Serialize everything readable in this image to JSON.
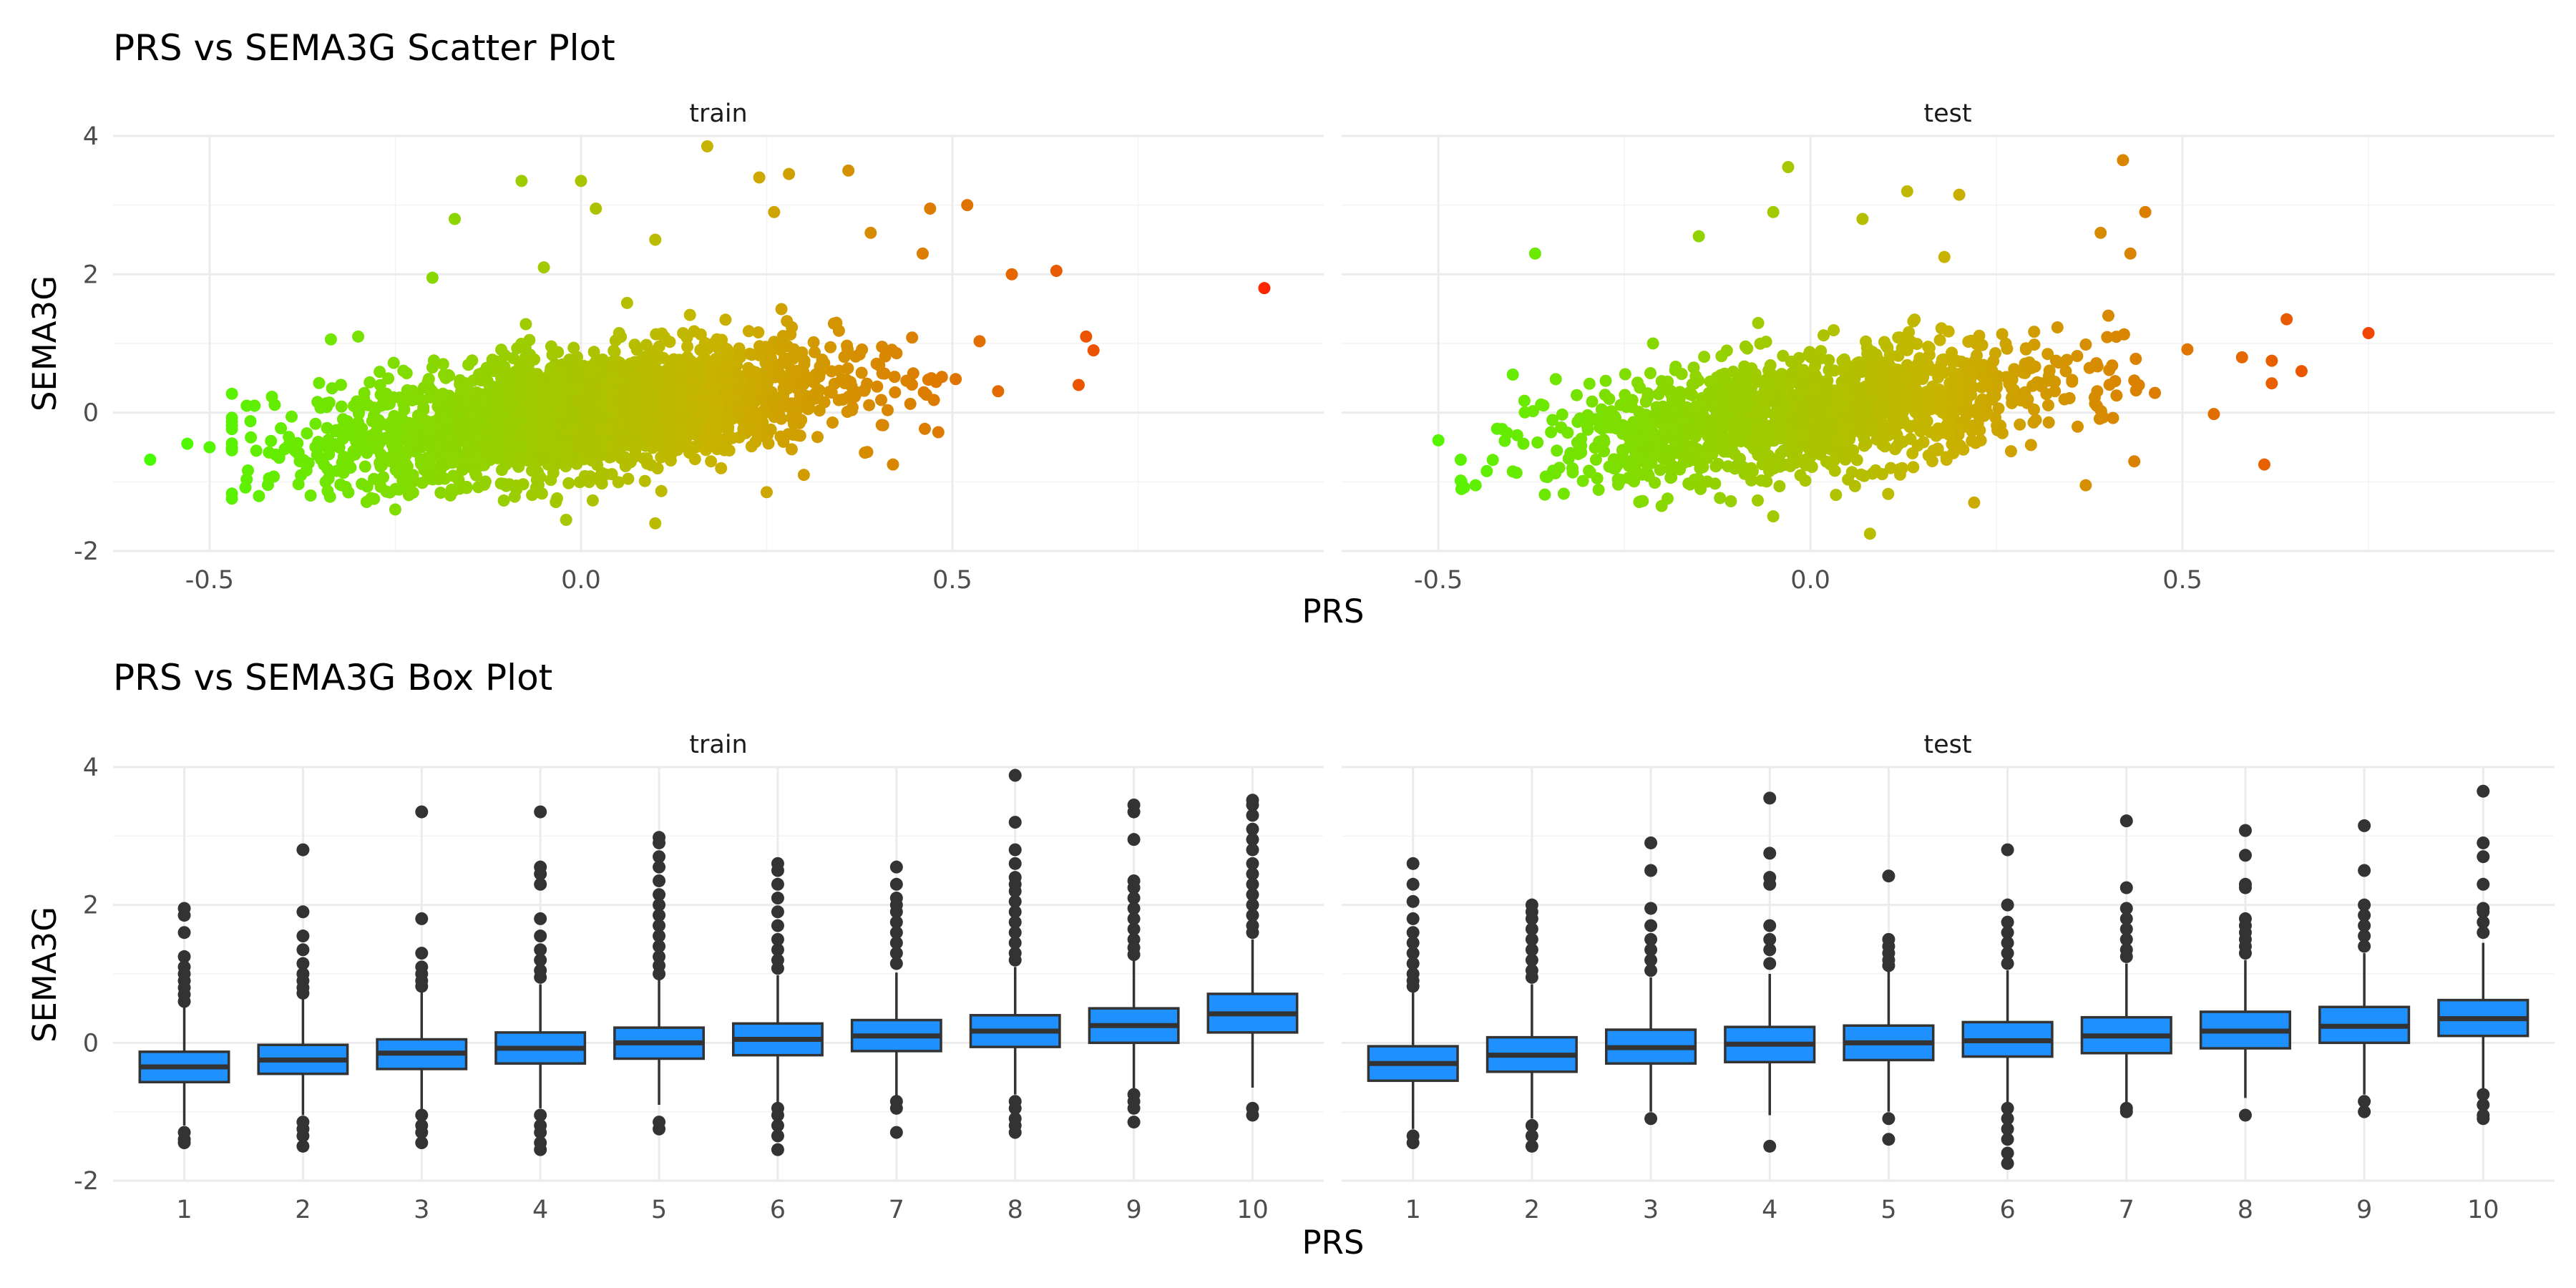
{
  "colors": {
    "low": "#44ff00",
    "mid": "#c8b400",
    "high": "#ff2000",
    "box_fill": "#1e90ff",
    "box_line": "#333333",
    "outlier": "#333333"
  },
  "chart_data": [
    {
      "type": "scatter",
      "title": "PRS vs SEMA3G Scatter Plot",
      "xlabel": "PRS",
      "ylabel": "SEMA3G",
      "xlim": [
        -0.63,
        1.0
      ],
      "ylim": [
        -2,
        4
      ],
      "x_ticks": [
        -0.5,
        0.0,
        0.5
      ],
      "x_tick_labels": [
        "-0.5",
        "0.0",
        "0.5"
      ],
      "y_ticks": [
        -2,
        0,
        2,
        4
      ],
      "y_tick_labels": [
        "-2",
        "0",
        "2",
        "4"
      ],
      "color_by": "PRS",
      "grid": true,
      "facets": [
        {
          "label": "train",
          "cloud": {
            "n": 2600,
            "prs_sd": 0.17,
            "slope": 1.3,
            "noise_sd": 0.42
          },
          "points": [
            [
              -0.58,
              -0.68
            ],
            [
              -0.53,
              -0.45
            ],
            [
              -0.5,
              -0.5
            ],
            [
              -0.45,
              0.1
            ],
            [
              -0.42,
              -0.95
            ],
            [
              -0.3,
              1.1
            ],
            [
              -0.2,
              1.95
            ],
            [
              -0.17,
              2.8
            ],
            [
              -0.08,
              3.35
            ],
            [
              -0.05,
              2.1
            ],
            [
              0.02,
              2.95
            ],
            [
              0.0,
              3.35
            ],
            [
              0.1,
              2.5
            ],
            [
              0.17,
              3.85
            ],
            [
              0.24,
              3.4
            ],
            [
              0.28,
              3.45
            ],
            [
              0.26,
              2.9
            ],
            [
              0.36,
              3.5
            ],
            [
              0.39,
              2.6
            ],
            [
              0.46,
              2.3
            ],
            [
              0.52,
              3.0
            ],
            [
              0.47,
              2.95
            ],
            [
              0.58,
              2.0
            ],
            [
              0.64,
              2.05
            ],
            [
              0.69,
              0.9
            ],
            [
              0.68,
              1.1
            ],
            [
              0.67,
              0.4
            ],
            [
              0.92,
              1.8
            ],
            [
              0.25,
              -1.15
            ],
            [
              0.1,
              -1.6
            ],
            [
              -0.02,
              -1.55
            ],
            [
              0.3,
              -0.9
            ],
            [
              0.42,
              -0.75
            ],
            [
              -0.25,
              -1.4
            ]
          ]
        },
        {
          "label": "test",
          "cloud": {
            "n": 1500,
            "prs_sd": 0.17,
            "slope": 1.3,
            "noise_sd": 0.42
          },
          "points": [
            [
              -0.5,
              -0.4
            ],
            [
              -0.45,
              -1.05
            ],
            [
              -0.4,
              -0.85
            ],
            [
              -0.37,
              2.3
            ],
            [
              -0.4,
              0.55
            ],
            [
              -0.15,
              2.55
            ],
            [
              -0.05,
              2.9
            ],
            [
              -0.03,
              3.55
            ],
            [
              0.07,
              2.8
            ],
            [
              0.13,
              3.2
            ],
            [
              0.2,
              3.15
            ],
            [
              0.18,
              2.25
            ],
            [
              0.39,
              2.6
            ],
            [
              0.42,
              3.65
            ],
            [
              0.45,
              2.9
            ],
            [
              0.43,
              2.3
            ],
            [
              0.58,
              0.8
            ],
            [
              0.62,
              0.75
            ],
            [
              0.66,
              0.6
            ],
            [
              0.64,
              1.35
            ],
            [
              0.75,
              1.15
            ],
            [
              0.61,
              -0.75
            ],
            [
              0.08,
              -1.75
            ],
            [
              -0.05,
              -1.5
            ],
            [
              0.22,
              -1.3
            ],
            [
              0.37,
              -1.05
            ],
            [
              -0.2,
              -1.35
            ]
          ]
        }
      ]
    },
    {
      "type": "box",
      "title": "PRS vs SEMA3G Box Plot",
      "xlabel": "PRS",
      "ylabel": "SEMA3G",
      "categories": [
        "1",
        "2",
        "3",
        "4",
        "5",
        "6",
        "7",
        "8",
        "9",
        "10"
      ],
      "ylim": [
        -2,
        4
      ],
      "y_ticks": [
        -2,
        0,
        2,
        4
      ],
      "y_tick_labels": [
        "-2",
        "0",
        "2",
        "4"
      ],
      "grid": true,
      "facets": [
        {
          "label": "train",
          "boxes": [
            {
              "q1": -0.57,
              "median": -0.35,
              "q3": -0.13,
              "lo": -1.2,
              "hi": 0.55,
              "outliers": [
                1.95,
                1.85,
                1.6,
                1.25,
                1.1,
                1.0,
                0.9,
                0.8,
                0.7,
                0.6,
                -1.3,
                -1.4,
                -1.45
              ]
            },
            {
              "q1": -0.45,
              "median": -0.25,
              "q3": -0.03,
              "lo": -1.05,
              "hi": 0.65,
              "outliers": [
                2.8,
                1.9,
                1.55,
                1.35,
                1.15,
                1.0,
                0.9,
                0.8,
                0.72,
                -1.15,
                -1.25,
                -1.35,
                -1.5
              ]
            },
            {
              "q1": -0.38,
              "median": -0.15,
              "q3": 0.05,
              "lo": -1.0,
              "hi": 0.75,
              "outliers": [
                3.35,
                1.8,
                1.3,
                1.1,
                1.0,
                0.9,
                0.82,
                -1.05,
                -1.2,
                -1.3,
                -1.45
              ]
            },
            {
              "q1": -0.3,
              "median": -0.08,
              "q3": 0.15,
              "lo": -0.95,
              "hi": 0.85,
              "outliers": [
                3.35,
                2.55,
                2.45,
                2.3,
                1.8,
                1.55,
                1.35,
                1.2,
                1.05,
                0.95,
                -1.05,
                -1.2,
                -1.3,
                -1.45,
                -1.55
              ]
            },
            {
              "q1": -0.23,
              "median": 0.0,
              "q3": 0.22,
              "lo": -0.9,
              "hi": 0.92,
              "outliers": [
                2.98,
                2.9,
                2.7,
                2.55,
                2.35,
                2.15,
                2.0,
                1.85,
                1.7,
                1.55,
                1.4,
                1.25,
                1.12,
                1.0,
                -1.15,
                -1.25
              ]
            },
            {
              "q1": -0.18,
              "median": 0.05,
              "q3": 0.28,
              "lo": -0.88,
              "hi": 0.98,
              "outliers": [
                2.6,
                2.5,
                2.3,
                2.1,
                1.9,
                1.7,
                1.5,
                1.35,
                1.2,
                1.08,
                -0.95,
                -1.05,
                -1.2,
                -1.35,
                -1.55
              ]
            },
            {
              "q1": -0.12,
              "median": 0.1,
              "q3": 0.33,
              "lo": -0.78,
              "hi": 1.02,
              "outliers": [
                2.55,
                2.3,
                2.1,
                2.0,
                1.9,
                1.75,
                1.6,
                1.45,
                1.3,
                1.15,
                -0.85,
                -0.95,
                -1.3
              ]
            },
            {
              "q1": -0.06,
              "median": 0.17,
              "q3": 0.4,
              "lo": -0.75,
              "hi": 1.1,
              "outliers": [
                3.88,
                3.2,
                2.8,
                2.6,
                2.4,
                2.3,
                2.2,
                2.05,
                1.9,
                1.75,
                1.6,
                1.45,
                1.3,
                1.2,
                -0.85,
                -0.95,
                -1.1,
                -1.2,
                -1.3
              ]
            },
            {
              "q1": 0.0,
              "median": 0.25,
              "q3": 0.5,
              "lo": -0.7,
              "hi": 1.2,
              "outliers": [
                3.45,
                3.35,
                2.95,
                2.35,
                2.25,
                2.1,
                1.95,
                1.8,
                1.65,
                1.5,
                1.38,
                1.28,
                -0.75,
                -0.85,
                -0.95,
                -1.15
              ]
            },
            {
              "q1": 0.15,
              "median": 0.42,
              "q3": 0.71,
              "lo": -0.65,
              "hi": 1.5,
              "outliers": [
                3.52,
                3.45,
                3.3,
                3.1,
                2.95,
                2.8,
                2.6,
                2.45,
                2.3,
                2.15,
                2.0,
                1.85,
                1.7,
                1.6,
                -0.95,
                -1.05
              ]
            }
          ]
        },
        {
          "label": "test",
          "boxes": [
            {
              "q1": -0.55,
              "median": -0.3,
              "q3": -0.05,
              "lo": -1.25,
              "hi": 0.75,
              "outliers": [
                2.6,
                2.3,
                2.05,
                1.8,
                1.6,
                1.45,
                1.3,
                1.15,
                1.0,
                0.9,
                0.82,
                -1.35,
                -1.45
              ]
            },
            {
              "q1": -0.42,
              "median": -0.18,
              "q3": 0.08,
              "lo": -1.1,
              "hi": 0.85,
              "outliers": [
                2.0,
                1.9,
                1.8,
                1.65,
                1.5,
                1.35,
                1.2,
                1.05,
                0.95,
                -1.2,
                -1.35,
                -1.5
              ]
            },
            {
              "q1": -0.3,
              "median": -0.07,
              "q3": 0.19,
              "lo": -1.0,
              "hi": 0.95,
              "outliers": [
                2.9,
                2.5,
                1.95,
                1.7,
                1.5,
                1.35,
                1.2,
                1.05,
                -1.1
              ]
            },
            {
              "q1": -0.28,
              "median": -0.02,
              "q3": 0.23,
              "lo": -1.05,
              "hi": 1.0,
              "outliers": [
                3.55,
                2.75,
                2.4,
                2.3,
                1.7,
                1.5,
                1.35,
                1.15,
                -1.5
              ]
            },
            {
              "q1": -0.25,
              "median": 0.0,
              "q3": 0.25,
              "lo": -1.0,
              "hi": 1.05,
              "outliers": [
                2.42,
                1.5,
                1.4,
                1.3,
                1.2,
                1.12,
                -1.1,
                -1.4
              ]
            },
            {
              "q1": -0.2,
              "median": 0.03,
              "q3": 0.3,
              "lo": -0.92,
              "hi": 1.05,
              "outliers": [
                2.8,
                2.0,
                1.75,
                1.6,
                1.45,
                1.3,
                1.15,
                -0.95,
                -1.1,
                -1.25,
                -1.4,
                -1.6,
                -1.75
              ]
            },
            {
              "q1": -0.15,
              "median": 0.1,
              "q3": 0.37,
              "lo": -0.9,
              "hi": 1.15,
              "outliers": [
                3.22,
                2.25,
                1.95,
                1.8,
                1.65,
                1.5,
                1.35,
                1.25,
                -0.95,
                -1.0
              ]
            },
            {
              "q1": -0.08,
              "median": 0.17,
              "q3": 0.45,
              "lo": -0.8,
              "hi": 1.2,
              "outliers": [
                3.08,
                2.72,
                2.3,
                2.25,
                1.8,
                1.7,
                1.6,
                1.5,
                1.4,
                1.3,
                -1.05
              ]
            },
            {
              "q1": 0.0,
              "median": 0.24,
              "q3": 0.52,
              "lo": -0.75,
              "hi": 1.3,
              "outliers": [
                3.15,
                2.5,
                2.0,
                1.85,
                1.7,
                1.55,
                1.4,
                -0.85,
                -1.0
              ]
            },
            {
              "q1": 0.1,
              "median": 0.35,
              "q3": 0.62,
              "lo": -0.7,
              "hi": 1.45,
              "outliers": [
                3.65,
                2.9,
                2.7,
                2.3,
                1.95,
                1.9,
                1.75,
                1.6,
                -0.75,
                -0.9,
                -1.05,
                -1.1
              ]
            }
          ]
        }
      ]
    }
  ]
}
